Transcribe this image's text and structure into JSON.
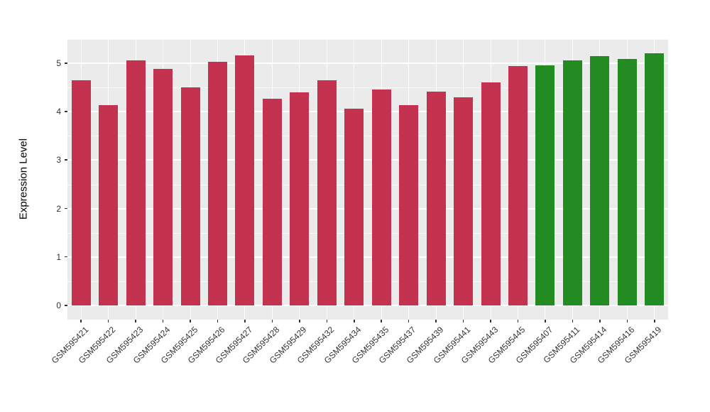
{
  "chart_data": {
    "type": "bar",
    "title": "",
    "xlabel": "",
    "ylabel": "Expression Level",
    "categories": [
      "GSM595421",
      "GSM595422",
      "GSM595423",
      "GSM595424",
      "GSM595425",
      "GSM595426",
      "GSM595427",
      "GSM595428",
      "GSM595429",
      "GSM595432",
      "GSM595434",
      "GSM595435",
      "GSM595437",
      "GSM595439",
      "GSM595441",
      "GSM595443",
      "GSM595445",
      "GSM595407",
      "GSM595411",
      "GSM595414",
      "GSM595416",
      "GSM595419"
    ],
    "values": [
      4.65,
      4.13,
      5.06,
      4.89,
      4.5,
      5.03,
      5.16,
      4.27,
      4.4,
      4.65,
      4.07,
      4.46,
      4.13,
      4.41,
      4.3,
      4.6,
      4.94,
      4.96,
      5.06,
      5.15,
      5.09,
      5.21
    ],
    "groups": [
      "red",
      "red",
      "red",
      "red",
      "red",
      "red",
      "red",
      "red",
      "red",
      "red",
      "red",
      "red",
      "red",
      "red",
      "red",
      "red",
      "red",
      "green",
      "green",
      "green",
      "green",
      "green"
    ],
    "yticks": [
      0,
      1,
      2,
      3,
      4,
      5
    ],
    "ylim": [
      -0.29,
      5.5
    ],
    "grid": "on",
    "legend": "none",
    "colors": {
      "red": "#C3334F",
      "green": "#228B22",
      "panel_bg": "#EBEBEB",
      "gridline": "#FFFFFF",
      "axis_text": "#333333",
      "background": "#FFFFFF"
    }
  }
}
